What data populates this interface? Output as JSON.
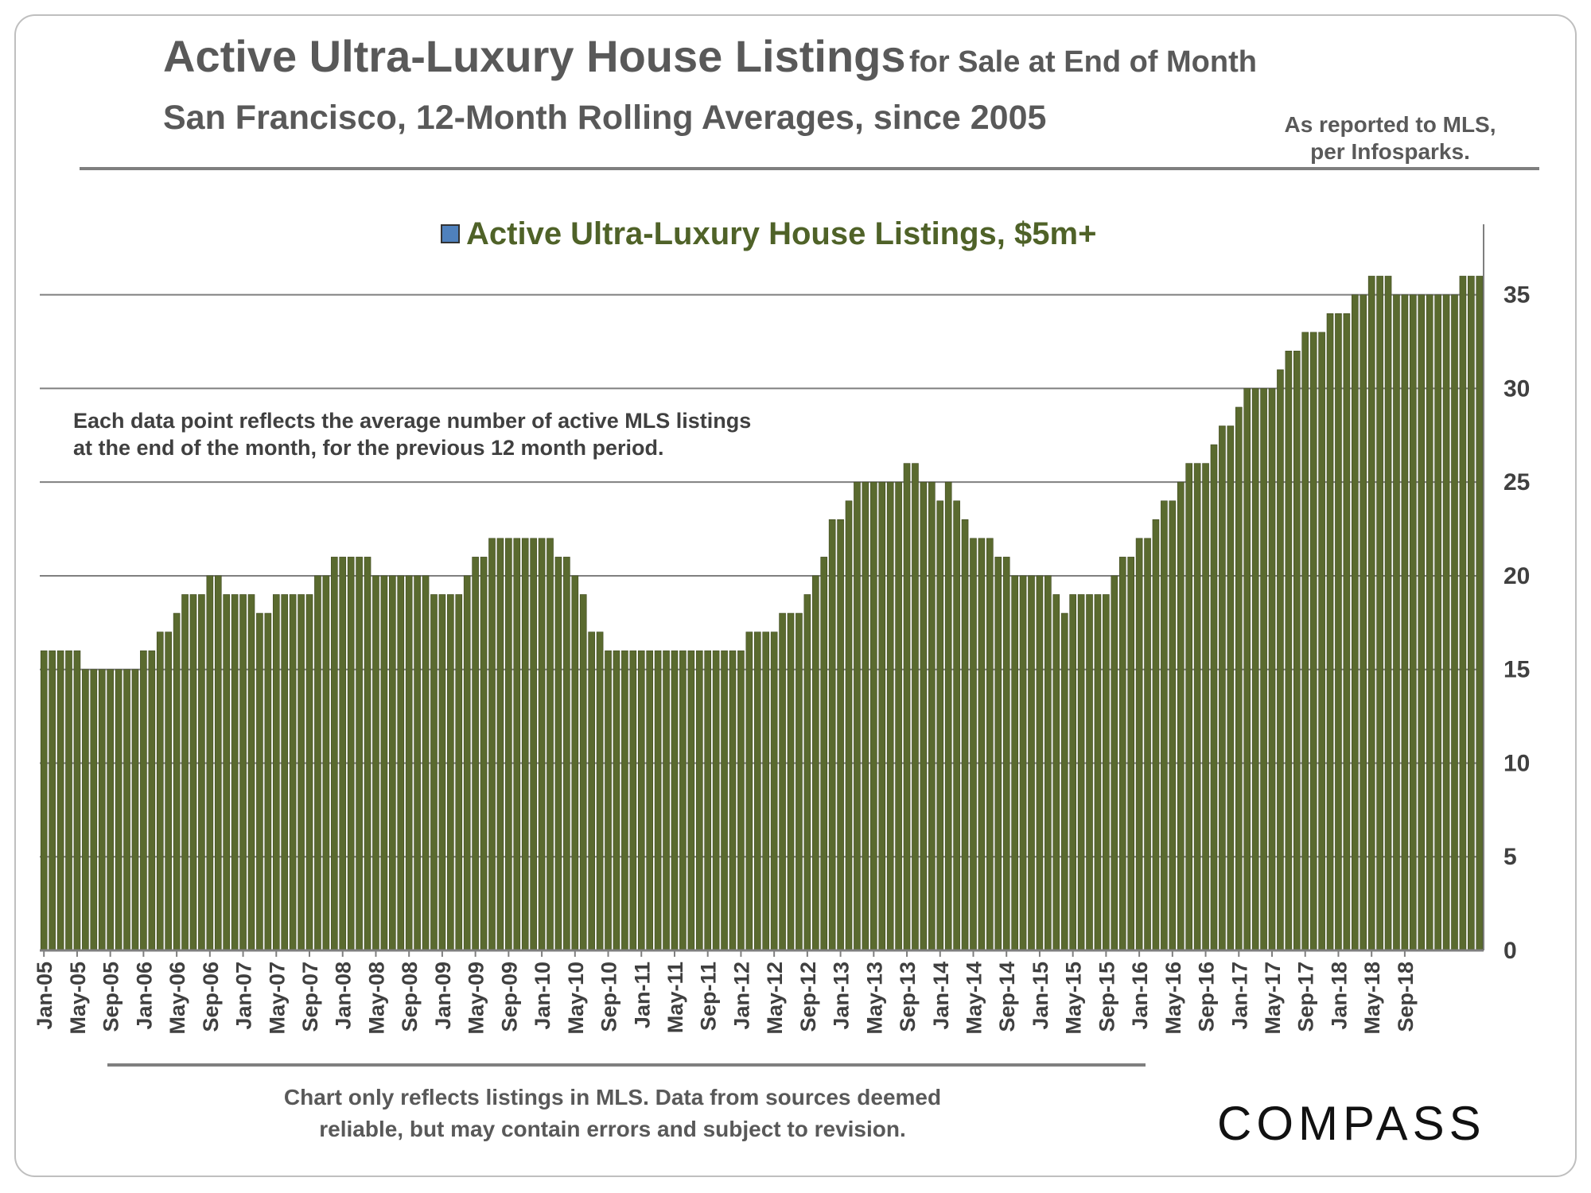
{
  "header": {
    "title_main": "Active Ultra-Luxury House Listings",
    "title_rest": "for Sale at End of Month",
    "subtitle": "San Francisco, 12-Month Rolling Averages, since 2005",
    "source_line1": "As reported to MLS,",
    "source_line2": "per Infosparks."
  },
  "annotation": {
    "line1": "Each data point reflects the average number of active MLS listings",
    "line2": "at the end of the month, for the previous 12 month period."
  },
  "footer": {
    "line1": "Chart only reflects listings in MLS. Data from sources deemed",
    "line2": "reliable, but may contain errors and subject to revision.",
    "logo": "COMPASS"
  },
  "colors": {
    "bar": "#5a6a2f",
    "bar_edge": "#3f4a20",
    "legend_swatch": "#4f81bd",
    "legend_text": "#4f6228",
    "grid": "#7f7f7f",
    "axis_text": "#404040"
  },
  "chart_data": {
    "type": "bar",
    "title": "Active Ultra-Luxury House Listings for Sale at End of Month",
    "legend": "Active Ultra-Luxury House Listings, $5m+",
    "legend_position": "top-center",
    "ylabel": "",
    "xlabel": "",
    "y_axis_side": "right",
    "ylim": [
      0,
      38
    ],
    "yticks": [
      0,
      5,
      10,
      15,
      20,
      25,
      30,
      35
    ],
    "grid": true,
    "start": "Jan-05",
    "x_tick_labels": [
      "Jan-05",
      "May-05",
      "Sep-05",
      "Jan-06",
      "May-06",
      "Sep-06",
      "Jan-07",
      "May-07",
      "Sep-07",
      "Jan-08",
      "May-08",
      "Sep-08",
      "Jan-09",
      "May-09",
      "Sep-09",
      "Jan-10",
      "May-10",
      "Sep-10",
      "Jan-11",
      "May-11",
      "Sep-11",
      "Jan-12",
      "May-12",
      "Sep-12",
      "Jan-13",
      "May-13",
      "Sep-13",
      "Jan-14",
      "May-14",
      "Sep-14",
      "Jan-15",
      "May-15",
      "Sep-15",
      "Jan-16",
      "May-16",
      "Sep-16",
      "Jan-17",
      "May-17",
      "Sep-17",
      "Jan-18",
      "May-18",
      "Sep-18"
    ],
    "values": [
      16,
      16,
      16,
      16,
      16,
      15,
      15,
      15,
      15,
      15,
      15,
      15,
      16,
      16,
      17,
      17,
      18,
      19,
      19,
      19,
      20,
      20,
      19,
      19,
      19,
      19,
      18,
      18,
      19,
      19,
      19,
      19,
      19,
      20,
      20,
      21,
      21,
      21,
      21,
      21,
      20,
      20,
      20,
      20,
      20,
      20,
      20,
      19,
      19,
      19,
      19,
      20,
      21,
      21,
      22,
      22,
      22,
      22,
      22,
      22,
      22,
      22,
      21,
      21,
      20,
      19,
      17,
      17,
      16,
      16,
      16,
      16,
      16,
      16,
      16,
      16,
      16,
      16,
      16,
      16,
      16,
      16,
      16,
      16,
      16,
      17,
      17,
      17,
      17,
      18,
      18,
      18,
      19,
      20,
      21,
      23,
      23,
      24,
      25,
      25,
      25,
      25,
      25,
      25,
      26,
      26,
      25,
      25,
      24,
      25,
      24,
      23,
      22,
      22,
      22,
      21,
      21,
      20,
      20,
      20,
      20,
      20,
      19,
      18,
      19,
      19,
      19,
      19,
      19,
      20,
      21,
      21,
      22,
      22,
      23,
      24,
      24,
      25,
      26,
      26,
      26,
      27,
      28,
      28,
      29,
      30,
      30,
      30,
      30,
      31,
      32,
      32,
      33,
      33,
      33,
      34,
      34,
      34,
      35,
      35,
      36,
      36,
      36,
      35,
      35,
      35,
      35,
      35,
      35,
      35,
      35,
      36,
      36,
      36
    ]
  }
}
